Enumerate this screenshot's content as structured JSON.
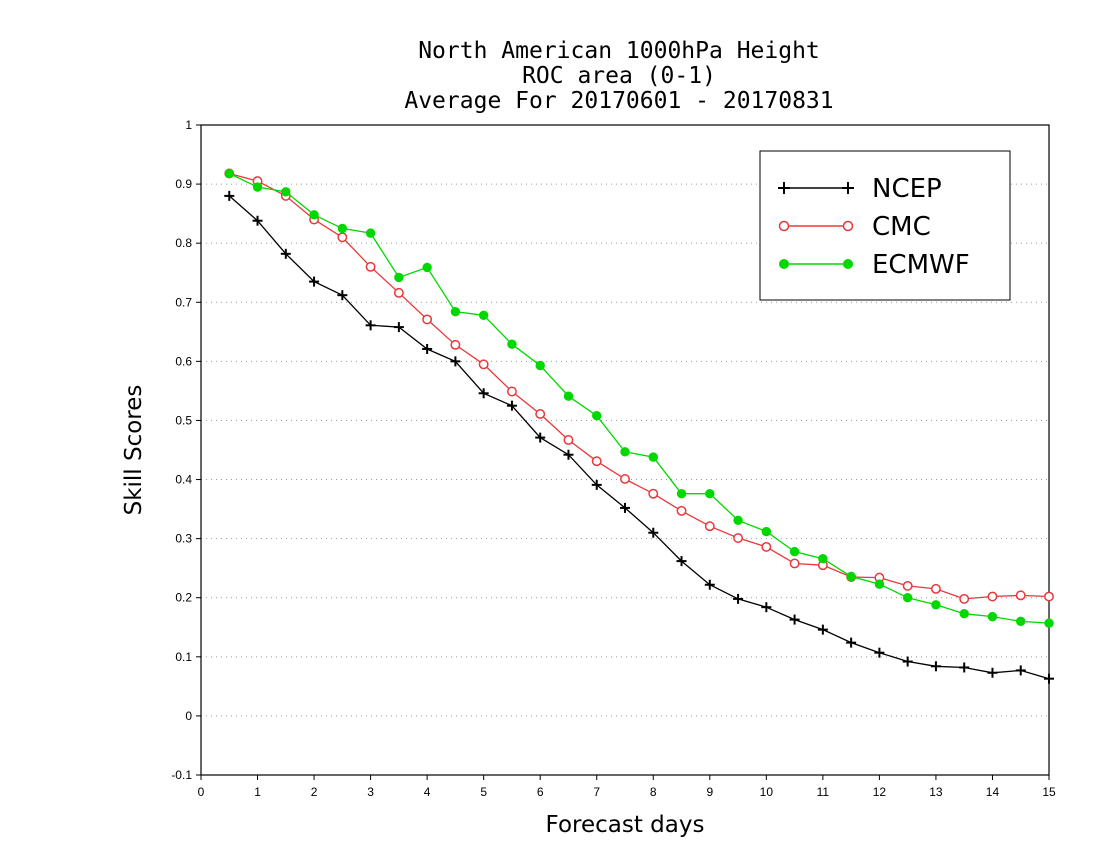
{
  "chart_data": {
    "type": "line",
    "title": [
      "North American 1000hPa Height",
      "ROC area (0-1)",
      "Average For 20170601 - 20170831"
    ],
    "xlabel": "Forecast days",
    "ylabel": "Skill Scores",
    "xlim": [
      0,
      15
    ],
    "ylim": [
      -0.1,
      1
    ],
    "x_ticks": [
      0,
      1,
      2,
      3,
      4,
      5,
      6,
      7,
      8,
      9,
      10,
      11,
      12,
      13,
      14,
      15
    ],
    "x_tick_labels": [
      "0",
      "1",
      "2",
      "3",
      "4",
      "5",
      "6",
      "7",
      "8",
      "9",
      "10",
      "11",
      "12",
      "13",
      "14",
      "15"
    ],
    "y_ticks": [
      -0.1,
      0,
      0.1,
      0.2,
      0.3,
      0.4,
      0.5,
      0.6,
      0.7,
      0.8,
      0.9,
      1
    ],
    "y_tick_labels": [
      "-0.1",
      "0",
      "0.1",
      "0.2",
      "0.3",
      "0.4",
      "0.5",
      "0.6",
      "0.7",
      "0.8",
      "0.9",
      "1"
    ],
    "grid": "horizontal dotted",
    "legend_position": "top-right",
    "x": [
      0.5,
      1,
      1.5,
      2,
      2.5,
      3,
      3.5,
      4,
      4.5,
      5,
      5.5,
      6,
      6.5,
      7,
      7.5,
      8,
      8.5,
      9,
      9.5,
      10,
      10.5,
      11,
      11.5,
      12,
      12.5,
      13,
      13.5,
      14,
      14.5,
      15
    ],
    "series": [
      {
        "name": "NCEP",
        "color": "#000000",
        "marker": "plus",
        "values": [
          0.88,
          0.838,
          0.782,
          0.735,
          0.712,
          0.661,
          0.658,
          0.621,
          0.6,
          0.546,
          0.525,
          0.471,
          0.442,
          0.391,
          0.352,
          0.31,
          0.262,
          0.222,
          0.198,
          0.184,
          0.163,
          0.146,
          0.124,
          0.107,
          0.092,
          0.084,
          0.082,
          0.073,
          0.077,
          0.063
        ]
      },
      {
        "name": "CMC",
        "color": "#e8383b",
        "marker": "open-circle",
        "values": [
          0.918,
          0.905,
          0.88,
          0.84,
          0.81,
          0.76,
          0.716,
          0.671,
          0.628,
          0.595,
          0.549,
          0.511,
          0.467,
          0.431,
          0.401,
          0.376,
          0.347,
          0.321,
          0.301,
          0.286,
          0.258,
          0.255,
          0.235,
          0.234,
          0.22,
          0.215,
          0.198,
          0.202,
          0.204,
          0.202
        ]
      },
      {
        "name": "ECMWF",
        "color": "#00d800",
        "marker": "filled-circle",
        "values": [
          0.918,
          0.895,
          0.887,
          0.848,
          0.825,
          0.817,
          0.742,
          0.759,
          0.684,
          0.678,
          0.629,
          0.593,
          0.541,
          0.508,
          0.447,
          0.438,
          0.376,
          0.376,
          0.331,
          0.312,
          0.278,
          0.266,
          0.236,
          0.223,
          0.2,
          0.188,
          0.173,
          0.168,
          0.16,
          0.157
        ]
      }
    ]
  }
}
